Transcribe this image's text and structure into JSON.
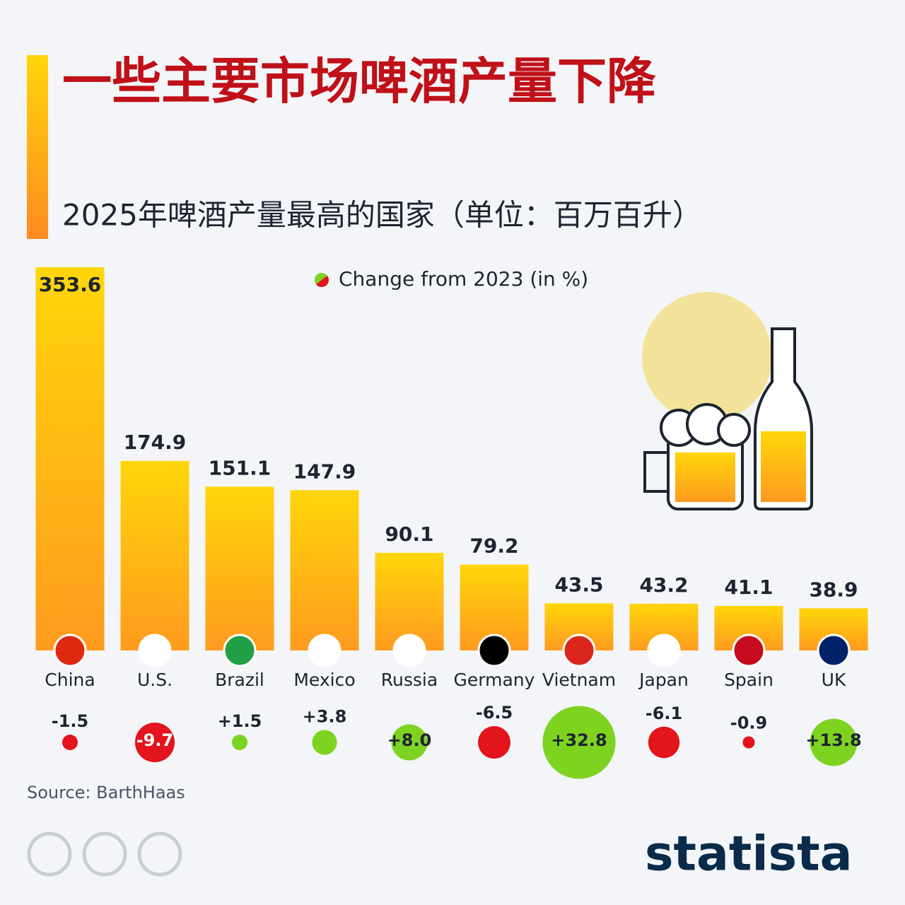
{
  "chart_data": {
    "type": "bar",
    "title": "一些主要市场啤酒产量下降",
    "subtitle": "2025年啤酒产量最高的国家（单位：百万百升）",
    "categories": [
      "China",
      "U.S.",
      "Brazil",
      "Mexico",
      "Russia",
      "Germany",
      "Vietnam",
      "Japan",
      "Spain",
      "UK"
    ],
    "values": [
      353.6,
      174.9,
      151.1,
      147.9,
      90.1,
      79.2,
      43.5,
      43.2,
      41.1,
      38.9
    ],
    "change": {
      "name": "Change from 2023 (in %)",
      "values": [
        -1.5,
        -9.7,
        1.5,
        3.8,
        8.0,
        -6.5,
        32.8,
        -6.1,
        -0.9,
        13.8
      ],
      "value_labels": [
        "-1.5",
        "-9.7",
        "+1.5",
        "+3.8",
        "+8.0",
        "-6.5",
        "+32.8",
        "-6.1",
        "-0.9",
        "+13.8"
      ],
      "positive_color": "#7ed321",
      "negative_color": "#e3141c"
    },
    "source": "Source: BarthHaas",
    "brand": "statista"
  }
}
